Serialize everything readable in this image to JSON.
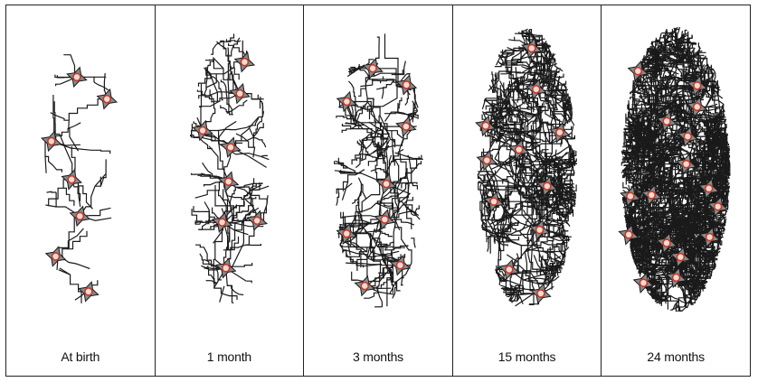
{
  "panels": [
    {
      "label": "At birth",
      "neurons": 7,
      "density": 1
    },
    {
      "label": "1 month",
      "neurons": 8,
      "density": 2
    },
    {
      "label": "3 months",
      "neurons": 9,
      "density": 3
    },
    {
      "label": "15 months",
      "neurons": 11,
      "density": 4
    },
    {
      "label": "24 months",
      "neurons": 16,
      "density": 5
    }
  ],
  "colors": {
    "line": "#1a1a1a",
    "soma": "#8a8a8a",
    "nucleus_ring": "#c0392b",
    "nucleus_fill": "#f6d9cf"
  }
}
